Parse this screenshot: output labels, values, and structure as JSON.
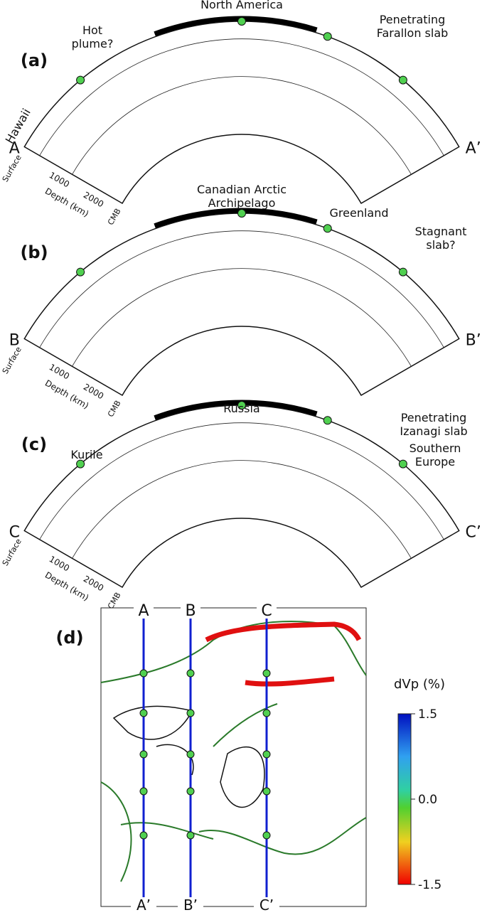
{
  "panels": [
    {
      "label": "(a)",
      "start": "A",
      "end": "A’",
      "surface": "Surface",
      "depth_label": "Depth (km)",
      "depth_ticks": [
        "1000",
        "2000"
      ],
      "cmb": "CMB",
      "annotations": [
        {
          "lines": [
            "North America"
          ]
        },
        {
          "lines": [
            "Hot",
            "plume?"
          ]
        },
        {
          "lines": [
            "Penetrating",
            "Farallon slab"
          ]
        },
        {
          "lines": [
            "Hawaii"
          ]
        }
      ]
    },
    {
      "label": "(b)",
      "start": "B",
      "end": "B’",
      "surface": "Surface",
      "depth_label": "Depth (km)",
      "depth_ticks": [
        "1000",
        "2000"
      ],
      "cmb": "CMB",
      "annotations": [
        {
          "lines": [
            "Canadian Arctic",
            "Archipelago"
          ]
        },
        {
          "lines": [
            "Greenland"
          ]
        },
        {
          "lines": [
            "Stagnant",
            "slab?"
          ]
        }
      ]
    },
    {
      "label": "(c)",
      "start": "C",
      "end": "C’",
      "surface": "Surface",
      "depth_label": "Depth (km)",
      "depth_ticks": [
        "1000",
        "2000"
      ],
      "cmb": "CMB",
      "annotations": [
        {
          "lines": [
            "Russia"
          ]
        },
        {
          "lines": [
            "Penetrating",
            "Izanagi slab"
          ]
        },
        {
          "lines": [
            "Kurile"
          ]
        },
        {
          "lines": [
            "Southern",
            "Europe"
          ]
        }
      ]
    }
  ],
  "map": {
    "label": "(d)",
    "top_labels": [
      "A",
      "B",
      "C"
    ],
    "bottom_labels": [
      "A’",
      "B’",
      "C’"
    ]
  },
  "colorbar": {
    "title": "dVp (%)",
    "lim": [
      -1.5,
      1.5
    ],
    "ticks": [
      1.5,
      {
        "value": 0,
        "label": "0.0"
      },
      -1.5
    ]
  }
}
